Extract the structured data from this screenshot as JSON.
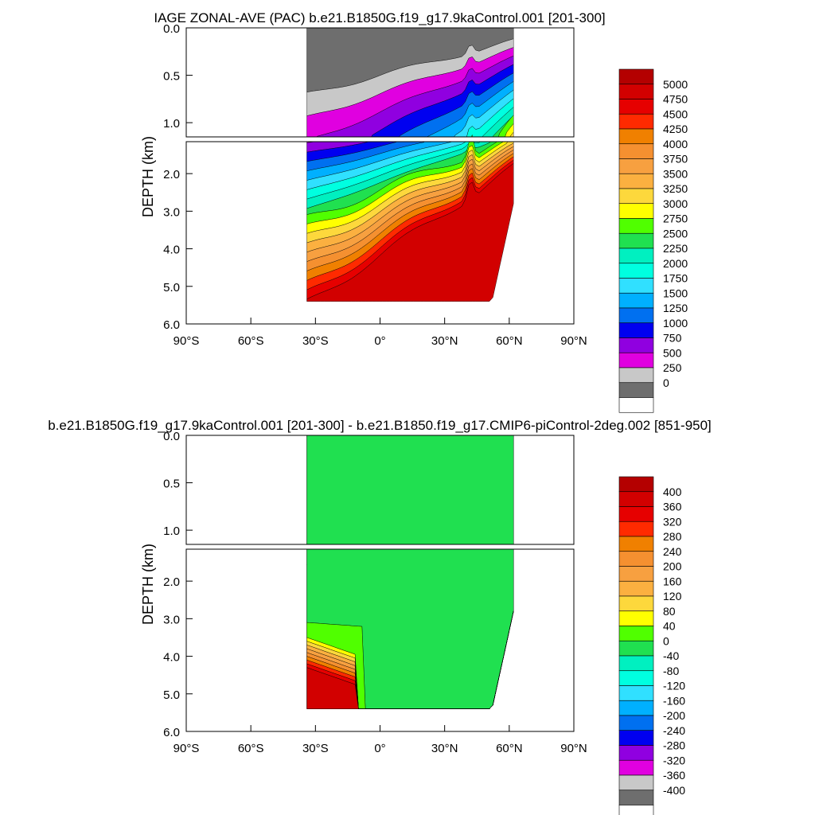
{
  "chart_data": [
    {
      "type": "heatmap",
      "title": "IAGE ZONAL-AVE (PAC) b.e21.B1850G.f19_g17.9kaControl.001 [201-300]",
      "xlabel": "",
      "ylabel": "DEPTH (km)",
      "xlim": [
        -90,
        90
      ],
      "ylim": [
        6.0,
        0.0
      ],
      "x_ticks": [
        {
          "value": -90,
          "label": "90°S"
        },
        {
          "value": -60,
          "label": "60°S"
        },
        {
          "value": -30,
          "label": "30°S"
        },
        {
          "value": 0,
          "label": "0°"
        },
        {
          "value": 30,
          "label": "30°N"
        },
        {
          "value": 60,
          "label": "60°N"
        },
        {
          "value": 90,
          "label": "90°N"
        }
      ],
      "y_ticks_upper": [
        "0.0",
        "0.5",
        "1.0"
      ],
      "y_ticks_lower": [
        "2.0",
        "3.0",
        "4.0",
        "5.0",
        "6.0"
      ],
      "data_lat_range": [
        -34,
        62
      ],
      "max_depth_km": 5.4,
      "colorbar": {
        "labels": [
          "5000",
          "4750",
          "4500",
          "4250",
          "4000",
          "3750",
          "3500",
          "3250",
          "3000",
          "2750",
          "2500",
          "2250",
          "2000",
          "1750",
          "1500",
          "1250",
          "1000",
          "750",
          "500",
          "250",
          "0"
        ],
        "colors": [
          "#b40000",
          "#d20000",
          "#e60000",
          "#ff2a00",
          "#f08000",
          "#f59030",
          "#f7a040",
          "#fbb040",
          "#fdd83c",
          "#ffff00",
          "#50ff00",
          "#20e050",
          "#00f0c0",
          "#00ffe0",
          "#30e0ff",
          "#00b0ff",
          "#0070f0",
          "#0000f0",
          "#9000e0",
          "#e000e0",
          "#c8c8c8",
          "#6e6e6e"
        ]
      }
    },
    {
      "type": "heatmap",
      "title": "b.e21.B1850G.f19_g17.9kaControl.001 [201-300] - b.e21.B1850.f19_g17.CMIP6-piControl-2deg.002 [851-950]",
      "xlabel": "",
      "ylabel": "DEPTH (km)",
      "xlim": [
        -90,
        90
      ],
      "ylim": [
        6.0,
        0.0
      ],
      "x_ticks": [
        {
          "value": -90,
          "label": "90°S"
        },
        {
          "value": -60,
          "label": "60°S"
        },
        {
          "value": -30,
          "label": "30°S"
        },
        {
          "value": 0,
          "label": "0°"
        },
        {
          "value": 30,
          "label": "30°N"
        },
        {
          "value": 60,
          "label": "60°N"
        },
        {
          "value": 90,
          "label": "90°N"
        }
      ],
      "y_ticks_upper": [
        "0.0",
        "0.5",
        "1.0"
      ],
      "y_ticks_lower": [
        "2.0",
        "3.0",
        "4.0",
        "5.0",
        "6.0"
      ],
      "data_lat_range": [
        -34,
        62
      ],
      "max_depth_km": 5.4,
      "colorbar": {
        "labels": [
          "400",
          "360",
          "320",
          "280",
          "240",
          "200",
          "160",
          "120",
          "80",
          "40",
          "0",
          "-40",
          "-80",
          "-120",
          "-160",
          "-200",
          "-240",
          "-280",
          "-320",
          "-360",
          "-400"
        ],
        "colors": [
          "#b40000",
          "#d20000",
          "#e60000",
          "#ff2a00",
          "#f08000",
          "#f59030",
          "#f7a040",
          "#fbb040",
          "#fdd83c",
          "#ffff00",
          "#50ff00",
          "#20e050",
          "#00f0c0",
          "#00ffe0",
          "#30e0ff",
          "#00b0ff",
          "#0070f0",
          "#0000f0",
          "#9000e0",
          "#e000e0",
          "#c8c8c8",
          "#6e6e6e"
        ]
      }
    }
  ]
}
